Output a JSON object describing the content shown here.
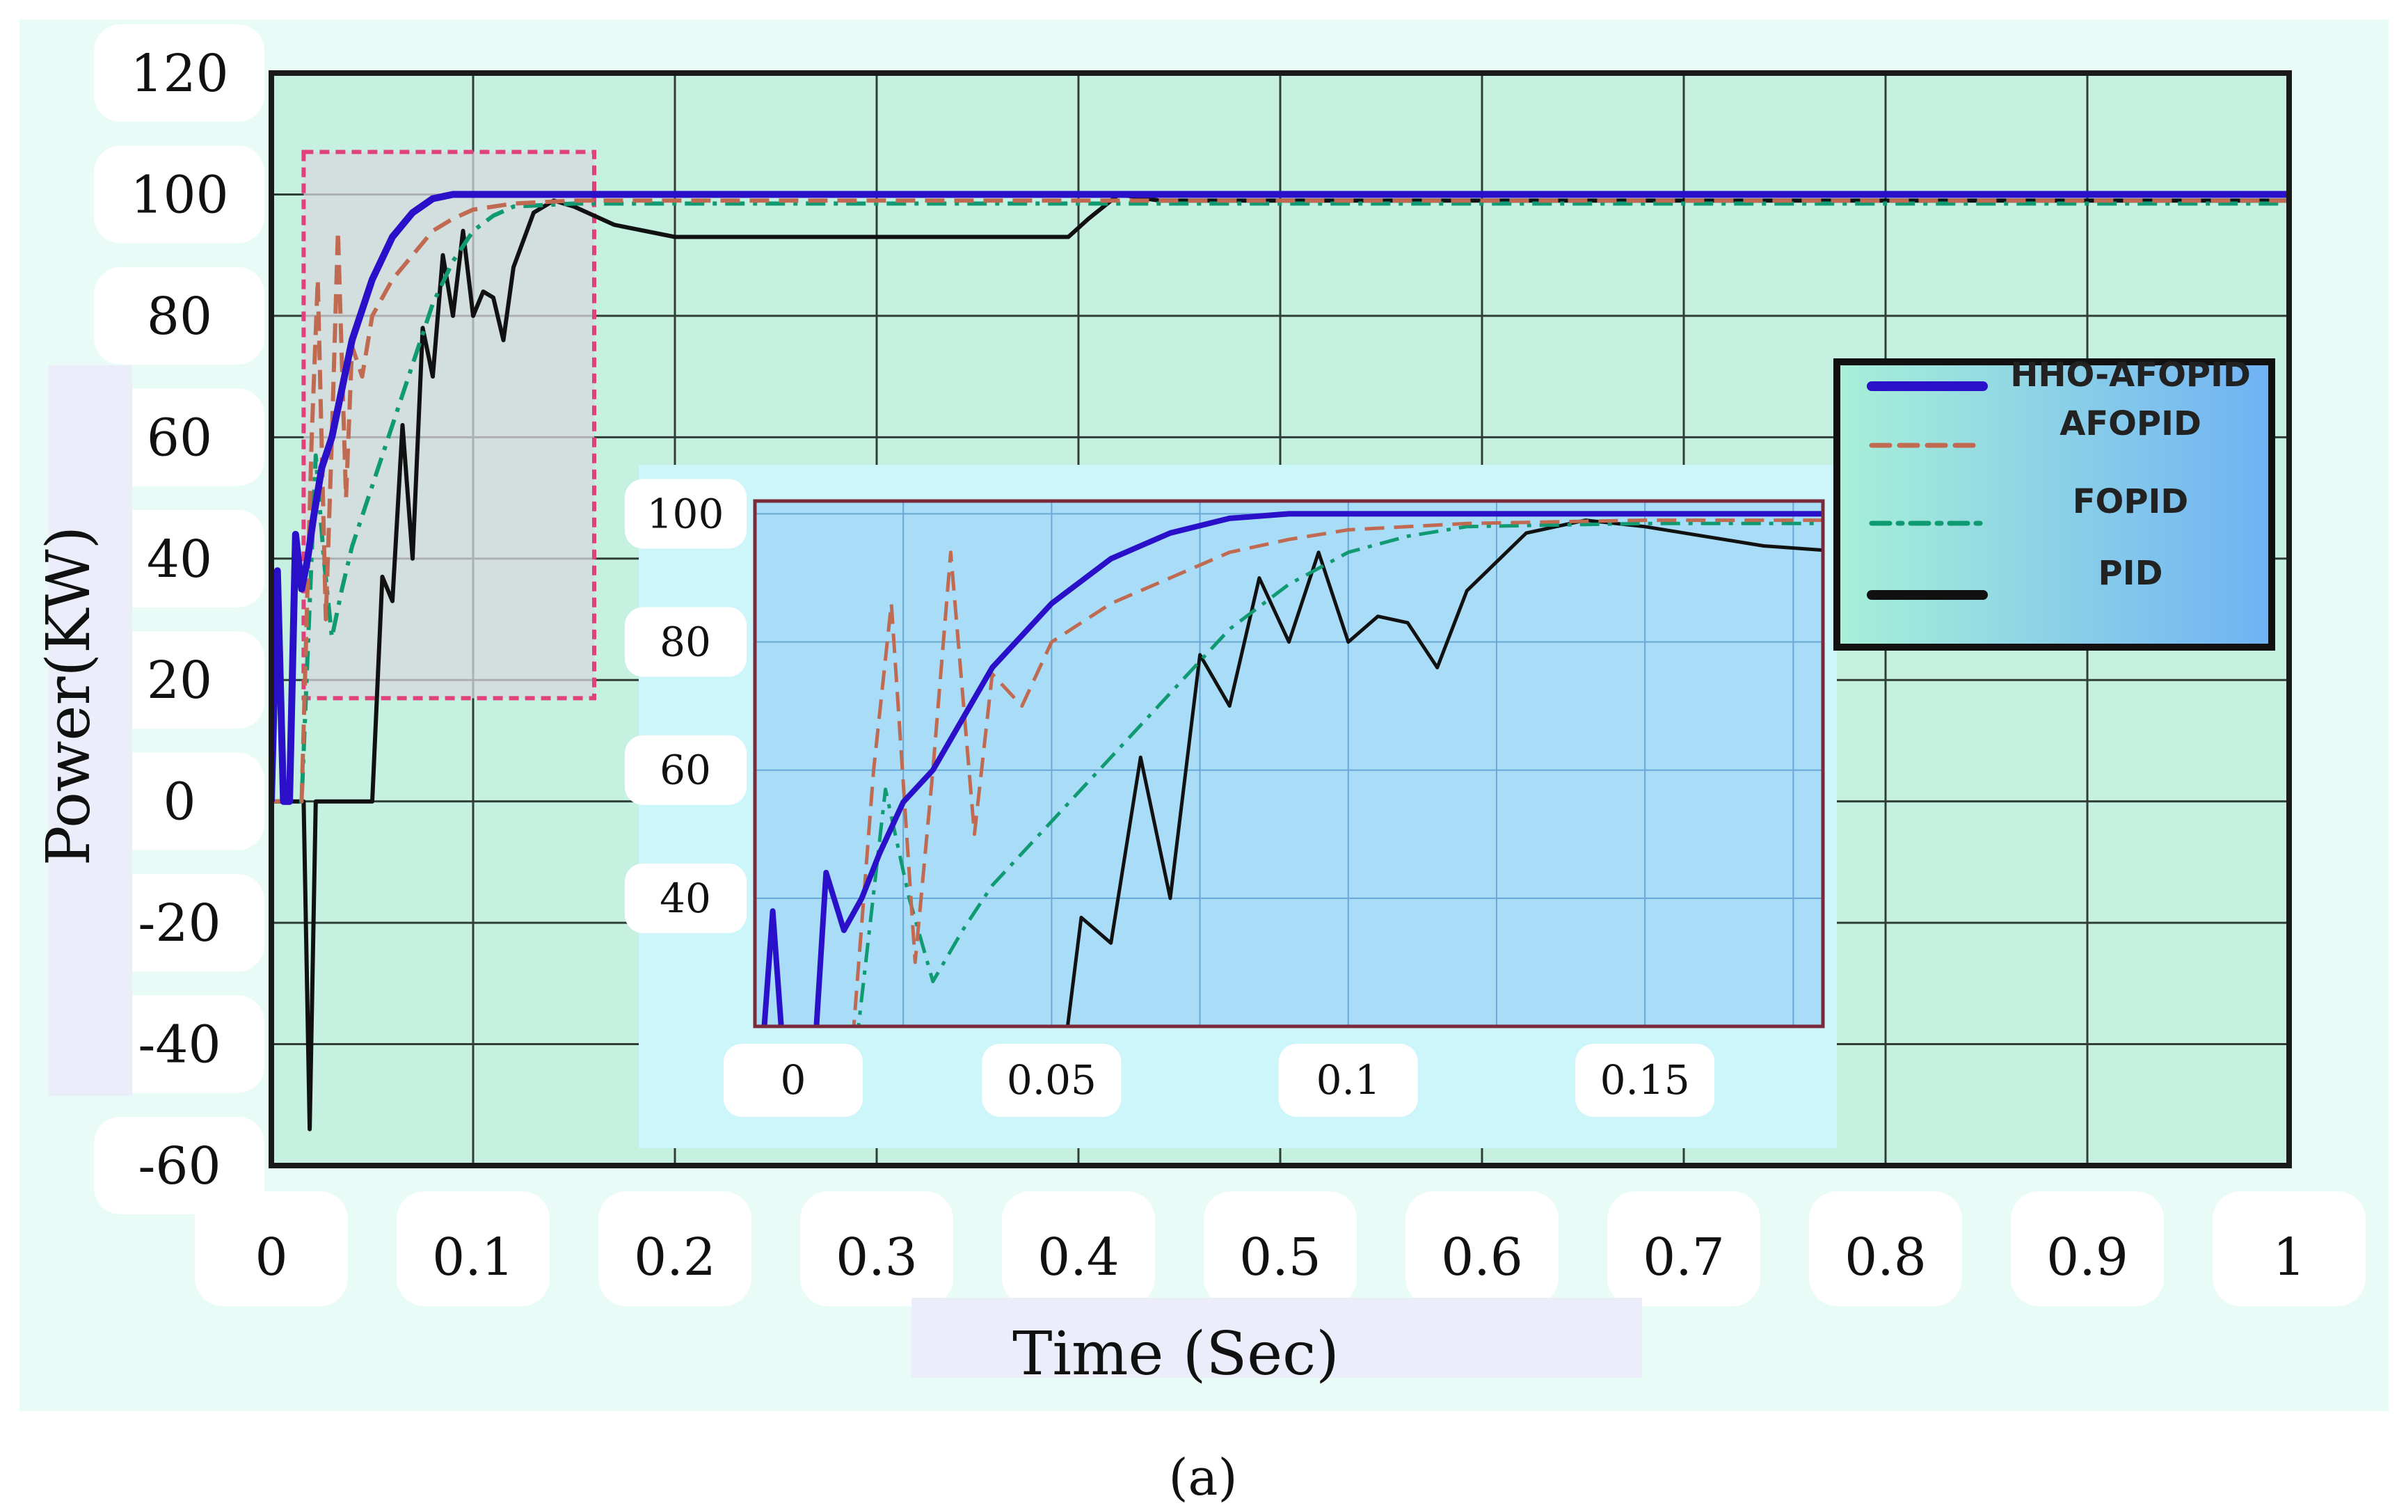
{
  "chart_data": {
    "type": "line",
    "caption": "(a)",
    "xlabel": "Time (Sec)",
    "ylabel": "Power(KW)",
    "xlim": [
      0,
      1
    ],
    "ylim": [
      -60,
      120
    ],
    "x_ticks": [
      "0",
      "0.1",
      "0.2",
      "0.3",
      "0.4",
      "0.5",
      "0.6",
      "0.7",
      "0.8",
      "0.9",
      "1"
    ],
    "y_ticks": [
      "120",
      "100",
      "80",
      "60",
      "40",
      "20",
      "0",
      "-20",
      "-40",
      "-60"
    ],
    "grid": true,
    "legend_position": "right",
    "colors": {
      "plot_background": "#c6f1e1",
      "grid": "#2f3f38",
      "zoom_box": "#e0417a",
      "zoom_fill": "#d7d7dc",
      "inset_background": "#a9dcf6"
    },
    "series": [
      {
        "name": "HHO-AFOPID",
        "color": "#2a10c8",
        "style": "solid",
        "x": [
          0,
          0.003,
          0.006,
          0.009,
          0.012,
          0.015,
          0.018,
          0.021,
          0.025,
          0.03,
          0.035,
          0.04,
          0.05,
          0.06,
          0.07,
          0.08,
          0.09,
          0.1,
          0.11,
          0.2,
          0.3,
          0.4,
          0.5,
          0.6,
          0.7,
          0.8,
          0.9,
          1.0
        ],
        "y": [
          0,
          38,
          0,
          0,
          44,
          35,
          40,
          47,
          55,
          60,
          68,
          76,
          86,
          93,
          97,
          99.3,
          100,
          100,
          100,
          100,
          100,
          100,
          100,
          100,
          100,
          100,
          100,
          100
        ]
      },
      {
        "name": "AFOPID",
        "color": "#c06a52",
        "style": "dashed",
        "x": [
          0,
          0.015,
          0.02,
          0.023,
          0.027,
          0.03,
          0.033,
          0.037,
          0.04,
          0.045,
          0.05,
          0.06,
          0.07,
          0.08,
          0.09,
          0.1,
          0.12,
          0.15,
          0.2,
          0.4,
          0.6,
          0.8,
          1.0
        ],
        "y": [
          0,
          0,
          60,
          86,
          30,
          60,
          94,
          50,
          75,
          70,
          80,
          86,
          90,
          94,
          96,
          97.5,
          98.5,
          99,
          99,
          99,
          99,
          99,
          99
        ]
      },
      {
        "name": "FOPID",
        "color": "#0f9a72",
        "style": "dashdot",
        "x": [
          0,
          0.015,
          0.022,
          0.026,
          0.03,
          0.035,
          0.04,
          0.05,
          0.06,
          0.07,
          0.08,
          0.09,
          0.1,
          0.11,
          0.12,
          0.15,
          0.2,
          0.4,
          0.6,
          0.8,
          1.0
        ],
        "y": [
          0,
          0,
          57,
          40,
          27,
          35,
          42,
          52,
          62,
          72,
          82,
          89,
          94,
          96.5,
          98,
          98.5,
          98.5,
          98.5,
          98.5,
          98.5,
          98.5
        ]
      },
      {
        "name": "PID",
        "color": "#111111",
        "style": "solid",
        "x": [
          0,
          0.016,
          0.019,
          0.022,
          0.026,
          0.05,
          0.055,
          0.06,
          0.065,
          0.07,
          0.075,
          0.08,
          0.085,
          0.09,
          0.095,
          0.1,
          0.105,
          0.11,
          0.115,
          0.12,
          0.13,
          0.14,
          0.15,
          0.17,
          0.2,
          0.3,
          0.395,
          0.405,
          0.42,
          0.44,
          0.5,
          0.6,
          0.8,
          1.0
        ],
        "y": [
          0,
          0,
          -54,
          0,
          0,
          0,
          37,
          33,
          62,
          40,
          78,
          70,
          90,
          80,
          94,
          80,
          84,
          83,
          76,
          88,
          97,
          99,
          98,
          95,
          93,
          93,
          93,
          96,
          100,
          99,
          99,
          99,
          99,
          99
        ]
      }
    ],
    "zoom_region": {
      "xlim": [
        0.016,
        0.16
      ],
      "ylim": [
        17,
        107
      ]
    },
    "inset": {
      "xlim": [
        0,
        0.18
      ],
      "ylim": [
        20,
        102
      ],
      "x_ticks": [
        "0",
        "0.05",
        "0.1",
        "0.15"
      ],
      "y_ticks": [
        "100",
        "80",
        "60",
        "40"
      ]
    }
  }
}
